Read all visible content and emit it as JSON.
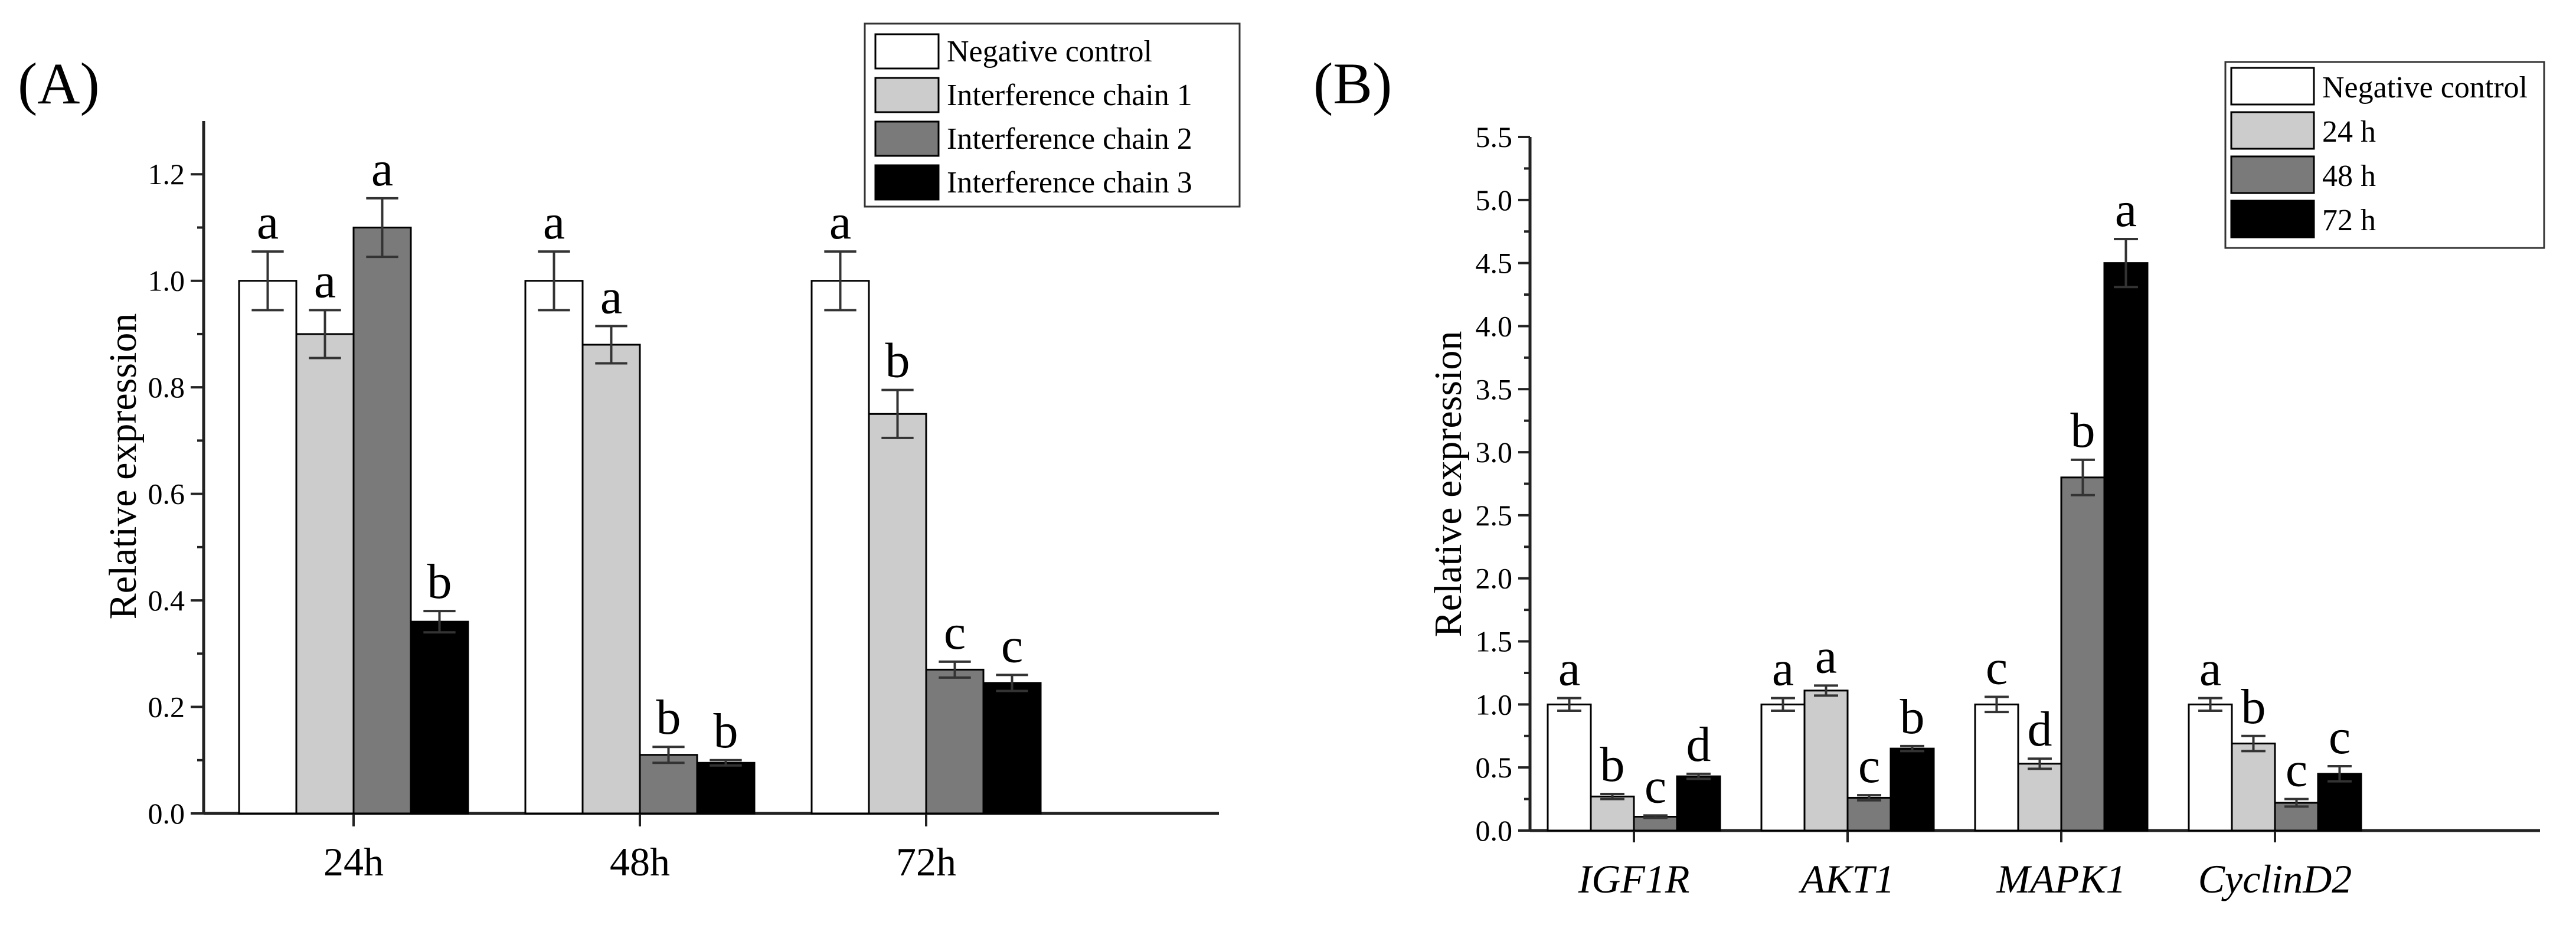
{
  "chart_data": [
    {
      "panel_label": "(A)",
      "type": "bar",
      "categories": [
        "24h",
        "48h",
        "72h"
      ],
      "category_style": "normal",
      "ylabel": "Relative expression",
      "ylim": [
        0,
        1.3
      ],
      "yticks": [
        "0.0",
        "0.2",
        "0.4",
        "0.6",
        "0.8",
        "1.0",
        "1.2"
      ],
      "series": [
        {
          "name": "Negative control",
          "color": "#ffffff",
          "values": [
            1.0,
            1.0,
            1.0
          ],
          "errors": [
            0.055,
            0.055,
            0.055
          ],
          "letters": [
            "a",
            "a",
            "a"
          ]
        },
        {
          "name": "Interference chain 1",
          "color": "#cccccc",
          "values": [
            0.9,
            0.88,
            0.75
          ],
          "errors": [
            0.045,
            0.035,
            0.045
          ],
          "letters": [
            "a",
            "a",
            "b"
          ]
        },
        {
          "name": "Interference chain 2",
          "color": "#7a7a7a",
          "values": [
            1.1,
            0.11,
            0.27
          ],
          "errors": [
            0.055,
            0.015,
            0.015
          ],
          "letters": [
            "a",
            "b",
            "c"
          ]
        },
        {
          "name": "Interference chain 3",
          "color": "#000000",
          "values": [
            0.36,
            0.095,
            0.245
          ],
          "errors": [
            0.02,
            0.005,
            0.015
          ],
          "letters": [
            "b",
            "b",
            "c"
          ]
        }
      ],
      "legend_position": "top-right"
    },
    {
      "panel_label": "(B)",
      "type": "bar",
      "categories": [
        "IGF1R",
        "AKT1",
        "MAPK1",
        "CyclinD2"
      ],
      "category_style": "italic",
      "ylabel": "Relative expression",
      "ylim": [
        0,
        5.5
      ],
      "yticks": [
        "0.0",
        "0.5",
        "1.0",
        "1.5",
        "2.0",
        "2.5",
        "3.0",
        "3.5",
        "4.0",
        "4.5",
        "5.0",
        "5.5"
      ],
      "series": [
        {
          "name": "Negative control",
          "color": "#ffffff",
          "values": [
            1.0,
            1.0,
            1.0,
            1.0
          ],
          "errors": [
            0.05,
            0.05,
            0.06,
            0.05
          ],
          "letters": [
            "a",
            "a",
            "c",
            "a"
          ]
        },
        {
          "name": "24 h",
          "color": "#cccccc",
          "values": [
            0.27,
            1.11,
            0.53,
            0.69
          ],
          "errors": [
            0.02,
            0.04,
            0.04,
            0.06
          ],
          "letters": [
            "b",
            "a",
            "d",
            "b"
          ]
        },
        {
          "name": "48 h",
          "color": "#7a7a7a",
          "values": [
            0.11,
            0.26,
            2.8,
            0.22
          ],
          "errors": [
            0.01,
            0.02,
            0.14,
            0.03
          ],
          "letters": [
            "c",
            "c",
            "b",
            "c"
          ]
        },
        {
          "name": "72 h",
          "color": "#000000",
          "values": [
            0.43,
            0.65,
            4.5,
            0.45
          ],
          "errors": [
            0.02,
            0.02,
            0.19,
            0.06
          ],
          "letters": [
            "d",
            "b",
            "a",
            "c"
          ]
        }
      ],
      "legend_position": "top-right"
    }
  ]
}
